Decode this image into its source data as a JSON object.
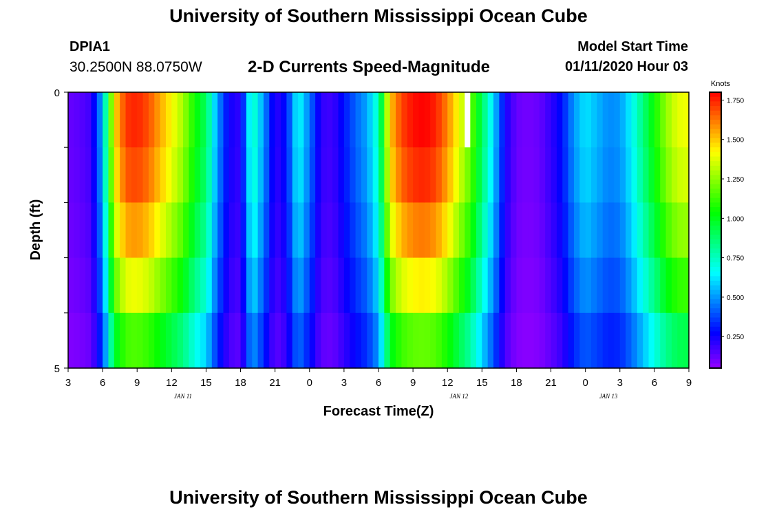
{
  "header": {
    "title": "University of Southern Mississippi Ocean Cube",
    "station_id": "DPIA1",
    "station_coords": "30.2500N 88.0750W",
    "plot_title": "2-D Currents Speed-Magnitude",
    "model_start_label": "Model Start Time",
    "model_start_value": "01/11/2020 Hour 03"
  },
  "footer": {
    "title": "University of Southern Mississippi Ocean Cube"
  },
  "chart_data": {
    "type": "heatmap",
    "title": "2-D Currents Speed-Magnitude",
    "xlabel": "Forecast Time(Z)",
    "ylabel": "Depth (ft)",
    "colorbar_label": "Knots",
    "x_tick_labels": [
      "3",
      "6",
      "9",
      "12",
      "15",
      "18",
      "21",
      "0",
      "3",
      "6",
      "9",
      "12",
      "15",
      "18",
      "21",
      "0",
      "3",
      "6",
      "9"
    ],
    "x_start_hour": 3,
    "x_end_hour": 57,
    "date_labels": [
      {
        "text": "JAN 11",
        "hour": 13
      },
      {
        "text": "JAN 12",
        "hour": 37
      },
      {
        "text": "JAN 13",
        "hour": 50
      }
    ],
    "y_tick_labels": [
      "0",
      "5"
    ],
    "ylim": [
      0,
      5
    ],
    "depth_levels": 5,
    "colorbar_ticks": [
      "0.250",
      "0.500",
      "0.750",
      "1.000",
      "1.250",
      "1.500",
      "1.750"
    ],
    "color_range": [
      0.05,
      1.8
    ],
    "hourly_speed_profile": [
      0.12,
      0.14,
      0.18,
      0.55,
      1.45,
      1.72,
      1.75,
      1.68,
      1.55,
      1.42,
      1.28,
      1.05,
      0.9,
      0.5,
      0.25,
      0.2,
      0.78,
      0.5,
      0.2,
      0.3,
      0.68,
      0.45,
      0.2,
      0.18,
      0.3,
      0.42,
      0.52,
      0.75,
      1.5,
      1.7,
      1.78,
      1.8,
      1.75,
      1.6,
      1.4,
      1.2,
      0.9,
      0.6,
      0.25,
      0.12,
      0.1,
      0.12,
      0.2,
      0.3,
      0.5,
      0.62,
      0.55,
      0.48,
      0.5,
      0.65,
      0.85,
      1.05,
      1.25,
      1.38,
      1.4
    ],
    "depth_factors": [
      1.0,
      0.97,
      0.9,
      0.8,
      0.66
    ],
    "missing_cell": {
      "hour": 37.5,
      "depth_level": 0
    }
  }
}
